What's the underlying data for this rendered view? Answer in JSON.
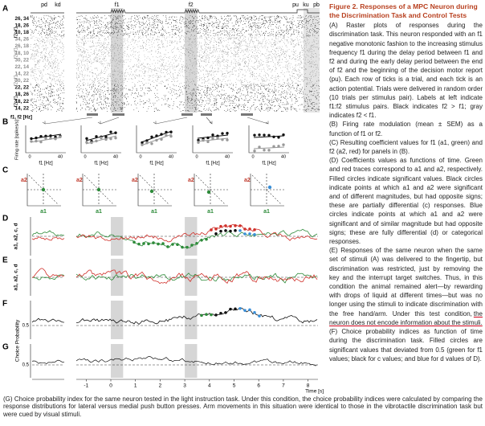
{
  "figure": {
    "panel_labels": [
      "A",
      "B",
      "C",
      "D",
      "E",
      "F",
      "G"
    ],
    "events": [
      "pd",
      "kd",
      "f1",
      "f2",
      "pu",
      "ku",
      "pb"
    ],
    "pair_labels": [
      "26, 34",
      "18, 26",
      "10, 18",
      "34, 26",
      "26, 18",
      "18, 10",
      "30, 22",
      "22, 14",
      "14, 22",
      "30, 22",
      "22, 22",
      "18, 26",
      "18, 22",
      "14, 22"
    ],
    "group_labels": [
      "f2>f1",
      "f2<f1",
      "f2<f1",
      "f2>f1"
    ],
    "b_axis_label": "f1, f2 [Hz]",
    "b_ylabel": "Firing rate [spikes/s]",
    "b_xlabel": "f1 [Hz]",
    "b_xticks": [
      "0",
      "40"
    ],
    "c_ylabel": "a2",
    "c_xlabel": "a1",
    "de_ylabel": "a1, a2, c, d",
    "fg_ylabel": "Choice Probability",
    "half_tick": "0.5",
    "time_ticks": [
      "-1",
      "0",
      "1",
      "2",
      "3",
      "4",
      "5",
      "6",
      "7",
      "8"
    ],
    "time_label": "Time [s]"
  },
  "caption": {
    "title": "Figure 2. Responses of a MPC Neuron during the Discrimination Task and Control Tests",
    "A": "(A) Raster plots of responses during the discrimination task. This neuron responded with an f1 negative monotonic fashion to the increasing stimulus frequency f1 during the delay period between f1 and f2 and during the early delay period between the end of f2 and the beginning of the decision motor report (pu). Each row of ticks is a trial, and each tick is an action potential. Trials were delivered in random order (10 trials per stimulus pair). Labels at left indicate f1:f2 stimulus pairs. Black indicates f2 > f1; gray indicates f2 < f1.",
    "B": "(B) Firing rate modulation (mean ± SEM) as a function of f1 or f2.",
    "C": "(C) Resulting coefficient values for f1 (a1, green) and f2 (a2, red) for panels in (B).",
    "D": "(D) Coefficients values as functions of time. Green and red traces correspond to a1 and a2, respectively. Filled circles indicate significant values. Black circles indicate points at which a1 and a2 were significant and of different magnitudes, but had opposite signs; these are partially differential (c) responses. Blue circles indicate points at which a1 and a2 were significant and of similar magnitude but had opposite signs; these are fully differential (d) or categorical responses.",
    "E": "(E) Responses of the same neuron when the same set of stimuli (A) was delivered to the fingertip, but discrimination was restricted, just by removing the key and the interrupt target switches. Thus, in this condition the animal remained alert—by rewarding with drops of liquid at different times—but was no longer using the stimuli to indicate discrimination with the free hand/arm. Under this test condition,",
    "E_underlined": "the neuron does not encode information about the stimuli.",
    "F": "(F) Choice probability indices as function of time during the discrimination task. Filled circles are significant values that deviated from 0.5 (green for f1 values; black for c values; and blue for d values of D).",
    "G": "(G) Choice probability index for the same neuron tested in the light instruction task. Under this condition, the choice probability indices were calculated by comparing the response distributions for lateral versus medial push button presses. Arm movements in this situation were identical to those in the vibrotactile discrimination task but were cued by visual stimuli."
  }
}
